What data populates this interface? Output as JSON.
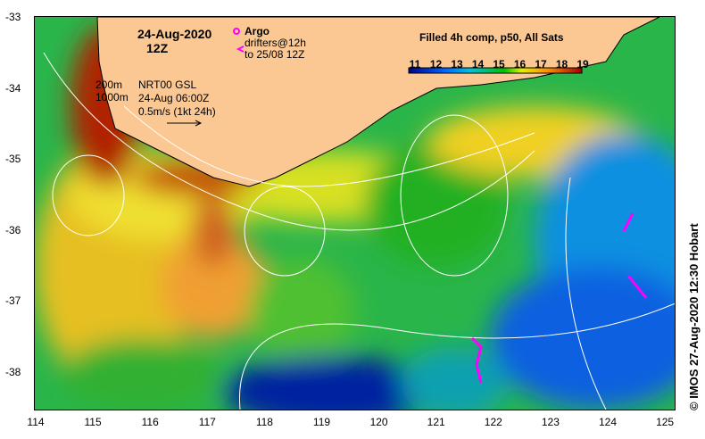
{
  "header": {
    "date": "24-Aug-2020",
    "time": "12Z"
  },
  "legend": {
    "argo": "Argo",
    "drifters_line1": "drifters@12h",
    "drifters_line2": "to 25/08 12Z",
    "argo_color": "#ff00ff"
  },
  "isobaths": {
    "a": "200m",
    "b": "1000m"
  },
  "currents": {
    "source": "NRT00 GSL",
    "time": "24-Aug 06:00Z",
    "scale": "0.5m/s (1kt 24h)"
  },
  "colorbar": {
    "title": "Filled 4h comp, p50, All Sats",
    "ticks": [
      "11",
      "12",
      "13",
      "14",
      "15",
      "16",
      "17",
      "18",
      "19"
    ]
  },
  "axes": {
    "lat_ticks": [
      "-33",
      "-34",
      "-35",
      "-36",
      "-37",
      "-38"
    ],
    "lon_ticks": [
      "114",
      "115",
      "116",
      "117",
      "118",
      "119",
      "120",
      "121",
      "122",
      "123",
      "124",
      "125"
    ]
  },
  "credit": "© IMOS 27-Aug-2020 12:30 Hobart",
  "colors": {
    "land": "#fbc894"
  }
}
